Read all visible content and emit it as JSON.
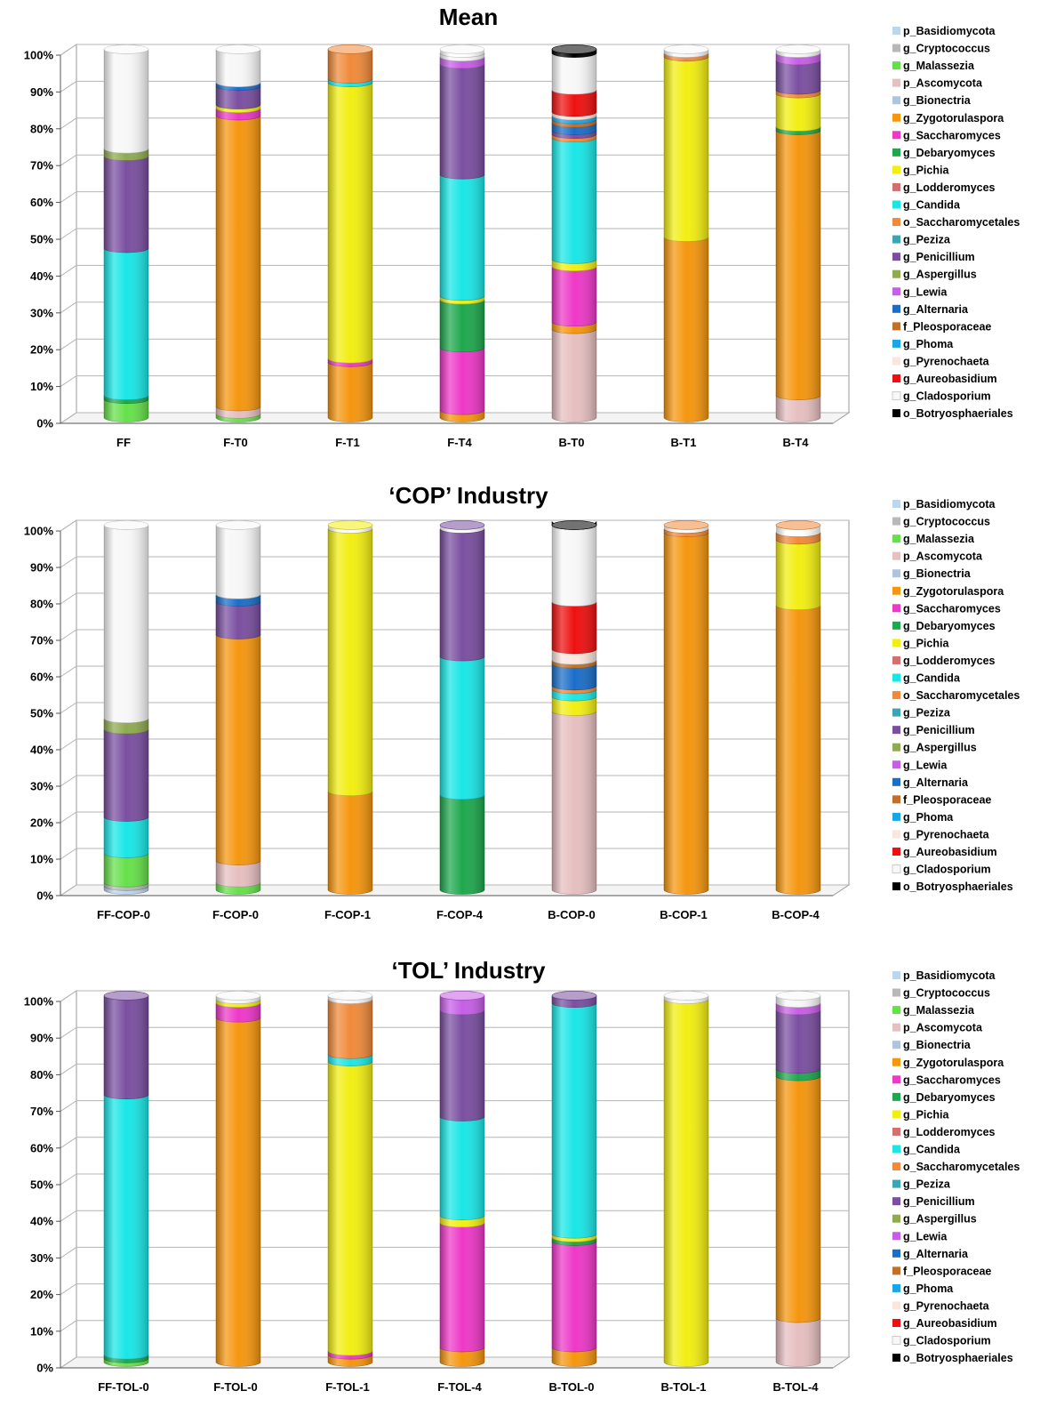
{
  "taxa": [
    {
      "name": "p_Basidiomycota",
      "color": "#bcd6ee"
    },
    {
      "name": "g_Cryptococcus",
      "color": "#b8b8b8"
    },
    {
      "name": "g_Malassezia",
      "color": "#66e04a"
    },
    {
      "name": "p_Ascomycota",
      "color": "#e6bfc0"
    },
    {
      "name": "g_Bionectria",
      "color": "#b0c4de"
    },
    {
      "name": "g_Zygotorulaspora",
      "color": "#f5960f"
    },
    {
      "name": "g_Saccharomyces",
      "color": "#ee38c8"
    },
    {
      "name": "g_Debaryomyces",
      "color": "#1ea84e"
    },
    {
      "name": "g_Pichia",
      "color": "#f2ee12"
    },
    {
      "name": "g_Lodderomyces",
      "color": "#d07070"
    },
    {
      "name": "g_Candida",
      "color": "#1ae6e6"
    },
    {
      "name": "o_Saccharomycetales",
      "color": "#f08a3a"
    },
    {
      "name": "g_Peziza",
      "color": "#3aa6b4"
    },
    {
      "name": "g_Penicillium",
      "color": "#7a4fa0"
    },
    {
      "name": "g_Aspergillus",
      "color": "#8faa50"
    },
    {
      "name": "g_Lewia",
      "color": "#c65ee6"
    },
    {
      "name": "g_Alternaria",
      "color": "#1a6ec8"
    },
    {
      "name": "f_Pleosporaceae",
      "color": "#c0702a"
    },
    {
      "name": "g_Phoma",
      "color": "#1aa6e6"
    },
    {
      "name": "g_Pyrenochaeta",
      "color": "#fae6de"
    },
    {
      "name": "g_Aureobasidium",
      "color": "#ee1010"
    },
    {
      "name": "g_Cladosporium",
      "color": "#f7f7f7"
    },
    {
      "name": "o_Botryosphaeriales",
      "color": "#000000"
    }
  ],
  "y_ticks": [
    "0%",
    "10%",
    "20%",
    "30%",
    "40%",
    "50%",
    "60%",
    "70%",
    "80%",
    "90%",
    "100%"
  ],
  "chart_data": [
    {
      "type": "bar",
      "stacked": true,
      "title": "Mean",
      "ylim": [
        0,
        100
      ],
      "categories": [
        "FF",
        "F-T0",
        "F-T1",
        "F-T4",
        "B-T0",
        "B-T1",
        "B-T4"
      ],
      "series": [
        {
          "name": "p_Basidiomycota",
          "values": [
            0,
            0,
            0,
            0,
            0,
            0,
            0
          ]
        },
        {
          "name": "g_Cryptococcus",
          "values": [
            0,
            0,
            0,
            0,
            0,
            0,
            0
          ]
        },
        {
          "name": "g_Malassezia",
          "values": [
            5,
            1,
            0,
            0,
            0,
            0,
            0
          ]
        },
        {
          "name": "p_Ascomycota",
          "values": [
            0,
            2,
            0,
            0,
            24,
            0,
            6
          ]
        },
        {
          "name": "g_Bionectria",
          "values": [
            0,
            0,
            0,
            0,
            0,
            0,
            0
          ]
        },
        {
          "name": "g_Zygotorulaspora",
          "values": [
            0,
            79,
            15,
            2,
            2,
            49,
            72
          ]
        },
        {
          "name": "g_Saccharomyces",
          "values": [
            0,
            2,
            1,
            17,
            15,
            0,
            0
          ]
        },
        {
          "name": "g_Debaryomyces",
          "values": [
            1,
            0,
            0,
            13,
            0,
            0,
            1
          ]
        },
        {
          "name": "g_Pichia",
          "values": [
            0,
            1,
            75,
            1,
            2,
            49,
            9
          ]
        },
        {
          "name": "g_Lodderomyces",
          "values": [
            0,
            0,
            0,
            0,
            0,
            0,
            0
          ]
        },
        {
          "name": "g_Candida",
          "values": [
            40,
            0,
            1,
            33,
            33,
            0,
            0
          ]
        },
        {
          "name": "o_Saccharomycetales",
          "values": [
            0,
            0,
            8,
            0,
            1,
            1,
            1
          ]
        },
        {
          "name": "g_Peziza",
          "values": [
            0,
            0,
            0,
            0,
            0,
            0,
            0
          ]
        },
        {
          "name": "g_Penicillium",
          "values": [
            25,
            5,
            0,
            30,
            1,
            0,
            8
          ]
        },
        {
          "name": "g_Aspergillus",
          "values": [
            2,
            0,
            0,
            0,
            0,
            0,
            0
          ]
        },
        {
          "name": "g_Lewia",
          "values": [
            0,
            0,
            0,
            2,
            0,
            0,
            2
          ]
        },
        {
          "name": "g_Alternaria",
          "values": [
            0,
            1,
            0,
            0,
            2,
            0,
            0
          ]
        },
        {
          "name": "f_Pleosporaceae",
          "values": [
            0,
            0,
            0,
            0,
            1,
            0,
            0
          ]
        },
        {
          "name": "g_Phoma",
          "values": [
            0,
            0,
            0,
            0,
            1,
            0,
            0
          ]
        },
        {
          "name": "g_Pyrenochaeta",
          "values": [
            0,
            0,
            0,
            0,
            1,
            0,
            0
          ]
        },
        {
          "name": "g_Aureobasidium",
          "values": [
            0,
            0,
            0,
            0,
            6,
            0,
            0
          ]
        },
        {
          "name": "g_Cladosporium",
          "values": [
            27,
            9,
            0,
            1,
            10,
            1,
            1
          ]
        },
        {
          "name": "o_Botryosphaeriales",
          "values": [
            0,
            0,
            0,
            0,
            1,
            0,
            0
          ]
        }
      ]
    },
    {
      "type": "bar",
      "stacked": true,
      "title": "‘COP’ Industry",
      "ylim": [
        0,
        100
      ],
      "categories": [
        "FF-COP-0",
        "F-COP-0",
        "F-COP-1",
        "F-COP-4",
        "B-COP-0",
        "B-COP-1",
        "B-COP-4"
      ],
      "series": [
        {
          "name": "p_Basidiomycota",
          "values": [
            1,
            0,
            0,
            0,
            0,
            0,
            0
          ]
        },
        {
          "name": "g_Cryptococcus",
          "values": [
            1,
            0,
            0,
            0,
            0,
            0,
            0
          ]
        },
        {
          "name": "g_Malassezia",
          "values": [
            8,
            2,
            0,
            0,
            0,
            0,
            0
          ]
        },
        {
          "name": "p_Ascomycota",
          "values": [
            0,
            6,
            0,
            0,
            49,
            0,
            0
          ]
        },
        {
          "name": "g_Bionectria",
          "values": [
            0,
            0,
            0,
            0,
            0,
            0,
            0
          ]
        },
        {
          "name": "g_Zygotorulaspora",
          "values": [
            0,
            62,
            27,
            0,
            0,
            98,
            78
          ]
        },
        {
          "name": "g_Saccharomyces",
          "values": [
            0,
            0,
            0,
            0,
            0,
            0,
            0
          ]
        },
        {
          "name": "g_Debaryomyces",
          "values": [
            0,
            0,
            0,
            26,
            0,
            0,
            0
          ]
        },
        {
          "name": "g_Pichia",
          "values": [
            0,
            0,
            72,
            0,
            4,
            0,
            18
          ]
        },
        {
          "name": "g_Lodderomyces",
          "values": [
            0,
            0,
            0,
            0,
            0,
            0,
            0
          ]
        },
        {
          "name": "g_Candida",
          "values": [
            10,
            0,
            0,
            38,
            2,
            0,
            0
          ]
        },
        {
          "name": "o_Saccharomycetales",
          "values": [
            0,
            0,
            0,
            0,
            1,
            1,
            2
          ]
        },
        {
          "name": "g_Peziza",
          "values": [
            0,
            0,
            0,
            0,
            0,
            0,
            0
          ]
        },
        {
          "name": "g_Penicillium",
          "values": [
            24,
            9,
            0,
            35,
            0,
            0,
            0
          ]
        },
        {
          "name": "g_Aspergillus",
          "values": [
            3,
            0,
            0,
            0,
            0,
            0,
            0
          ]
        },
        {
          "name": "g_Lewia",
          "values": [
            0,
            0,
            0,
            0,
            0,
            0,
            0
          ]
        },
        {
          "name": "g_Alternaria",
          "values": [
            0,
            2,
            0,
            0,
            6,
            0,
            0
          ]
        },
        {
          "name": "f_Pleosporaceae",
          "values": [
            0,
            0,
            0,
            0,
            1,
            0,
            0
          ]
        },
        {
          "name": "g_Phoma",
          "values": [
            0,
            0,
            0,
            0,
            0,
            0,
            0
          ]
        },
        {
          "name": "g_Pyrenochaeta",
          "values": [
            0,
            0,
            0,
            0,
            3,
            0,
            0
          ]
        },
        {
          "name": "g_Aureobasidium",
          "values": [
            0,
            0,
            0,
            0,
            13,
            0,
            0
          ]
        },
        {
          "name": "g_Cladosporium",
          "values": [
            53,
            19,
            0,
            0,
            21,
            0,
            0
          ]
        },
        {
          "name": "o_Botryosphaeriales",
          "values": [
            0,
            0,
            0,
            0,
            1,
            0,
            0
          ]
        }
      ]
    },
    {
      "type": "bar",
      "stacked": true,
      "title": "‘TOL’ Industry",
      "ylim": [
        0,
        100
      ],
      "categories": [
        "FF-TOL-0",
        "F-TOL-0",
        "F-TOL-1",
        "F-TOL-4",
        "B-TOL-0",
        "B-TOL-1",
        "B-TOL-4"
      ],
      "series": [
        {
          "name": "p_Basidiomycota",
          "values": [
            0,
            0,
            0,
            0,
            0,
            0,
            0
          ]
        },
        {
          "name": "g_Cryptococcus",
          "values": [
            0,
            0,
            0,
            0,
            0,
            0,
            0
          ]
        },
        {
          "name": "g_Malassezia",
          "values": [
            1,
            0,
            0,
            0,
            0,
            0,
            0
          ]
        },
        {
          "name": "p_Ascomycota",
          "values": [
            0,
            0,
            0,
            0,
            0,
            0,
            12
          ]
        },
        {
          "name": "g_Bionectria",
          "values": [
            0,
            0,
            0,
            0,
            0,
            0,
            0
          ]
        },
        {
          "name": "g_Zygotorulaspora",
          "values": [
            0,
            94,
            2,
            4,
            4,
            0,
            66
          ]
        },
        {
          "name": "g_Saccharomyces",
          "values": [
            0,
            4,
            1,
            34,
            29,
            0,
            0
          ]
        },
        {
          "name": "g_Debaryomyces",
          "values": [
            1,
            0,
            0,
            0,
            1,
            0,
            2
          ]
        },
        {
          "name": "g_Pichia",
          "values": [
            0,
            1,
            79,
            2,
            1,
            99,
            0
          ]
        },
        {
          "name": "g_Lodderomyces",
          "values": [
            0,
            0,
            0,
            0,
            0,
            0,
            0
          ]
        },
        {
          "name": "g_Candida",
          "values": [
            71,
            0,
            2,
            27,
            63,
            0,
            0
          ]
        },
        {
          "name": "o_Saccharomycetales",
          "values": [
            0,
            0,
            15,
            0,
            0,
            0,
            0
          ]
        },
        {
          "name": "g_Peziza",
          "values": [
            0,
            0,
            0,
            0,
            0,
            0,
            0
          ]
        },
        {
          "name": "g_Penicillium",
          "values": [
            27,
            0,
            0,
            29,
            2,
            0,
            16
          ]
        },
        {
          "name": "g_Aspergillus",
          "values": [
            0,
            0,
            0,
            0,
            0,
            0,
            0
          ]
        },
        {
          "name": "g_Lewia",
          "values": [
            0,
            0,
            0,
            4,
            0,
            0,
            2
          ]
        },
        {
          "name": "g_Alternaria",
          "values": [
            0,
            0,
            0,
            0,
            0,
            0,
            0
          ]
        },
        {
          "name": "f_Pleosporaceae",
          "values": [
            0,
            0,
            0,
            0,
            0,
            0,
            0
          ]
        },
        {
          "name": "g_Phoma",
          "values": [
            0,
            0,
            0,
            0,
            0,
            0,
            0
          ]
        },
        {
          "name": "g_Pyrenochaeta",
          "values": [
            0,
            0,
            0,
            0,
            0,
            0,
            0
          ]
        },
        {
          "name": "g_Aureobasidium",
          "values": [
            0,
            0,
            0,
            0,
            0,
            0,
            0
          ]
        },
        {
          "name": "g_Cladosporium",
          "values": [
            0,
            1,
            1,
            0,
            0,
            1,
            2
          ]
        },
        {
          "name": "o_Botryosphaeriales",
          "values": [
            0,
            0,
            0,
            0,
            0,
            0,
            0
          ]
        }
      ]
    }
  ]
}
